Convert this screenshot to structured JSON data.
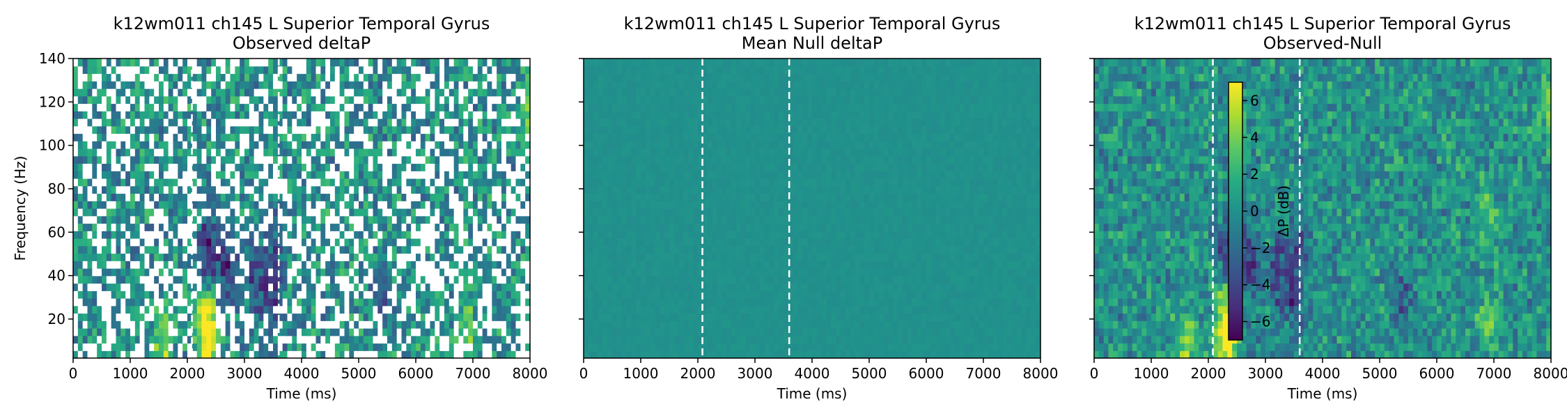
{
  "chart_data": [
    {
      "type": "heatmap",
      "title": "k12wm011 ch145 L Superior Temporal Gyrus",
      "subtitle": "Observed deltaP",
      "xlabel": "Time (ms)",
      "ylabel": "Frequency (Hz)",
      "xlim": [
        0,
        8000
      ],
      "ylim": [
        2,
        140
      ],
      "xticks": [
        0,
        1000,
        2000,
        3000,
        4000,
        5000,
        6000,
        7000,
        8000
      ],
      "yticks": [
        20,
        40,
        60,
        80,
        100,
        120,
        140
      ],
      "event_lines_ms": [
        2080,
        3600
      ],
      "colormap": "viridis",
      "masked_nonsignificant_white": true,
      "features": [
        {
          "t": 1600,
          "f": 10,
          "v": 4.0
        },
        {
          "t": 2350,
          "f": 10,
          "v": 6.5
        },
        {
          "t": 2300,
          "f": 25,
          "v": 4.5
        },
        {
          "t": 2350,
          "f": 50,
          "v": -6.0
        },
        {
          "t": 2700,
          "f": 45,
          "v": -5.0
        },
        {
          "t": 3200,
          "f": 40,
          "v": -4.0
        },
        {
          "t": 3500,
          "f": 30,
          "v": -3.5
        },
        {
          "t": 3550,
          "f": 55,
          "v": -3.0
        },
        {
          "t": 5400,
          "f": 30,
          "v": -2.5
        },
        {
          "t": 6900,
          "f": 18,
          "v": 3.0
        },
        {
          "t": 8000,
          "f": 115,
          "v": 4.0
        }
      ]
    },
    {
      "type": "heatmap",
      "title": "k12wm011 ch145 L Superior Temporal Gyrus",
      "subtitle": "Mean Null deltaP",
      "xlabel": "Time (ms)",
      "xlim": [
        0,
        8000
      ],
      "ylim": [
        2,
        140
      ],
      "xticks": [
        0,
        1000,
        2000,
        3000,
        4000,
        5000,
        6000,
        7000,
        8000
      ],
      "yticks": [
        20,
        40,
        60,
        80,
        100,
        120,
        140
      ],
      "event_lines_ms": [
        2080,
        3600
      ],
      "colormap": "viridis",
      "approximate_value": 0
    },
    {
      "type": "heatmap",
      "title": "k12wm011 ch145 L Superior Temporal Gyrus",
      "subtitle": "Observed-Null",
      "xlabel": "Time (ms)",
      "xlim": [
        0,
        8000
      ],
      "ylim": [
        2,
        140
      ],
      "xticks": [
        0,
        1000,
        2000,
        3000,
        4000,
        5000,
        6000,
        7000,
        8000
      ],
      "yticks": [
        20,
        40,
        60,
        80,
        100,
        120,
        140
      ],
      "event_lines_ms": [
        2080,
        3600
      ],
      "colormap": "viridis",
      "colorbar": {
        "label": "ΔP (dB)",
        "vmin": -7,
        "vmax": 7,
        "ticks": [
          -6,
          -4,
          -2,
          0,
          2,
          4,
          6
        ],
        "placement": "inside-left"
      },
      "features": [
        {
          "t": 1600,
          "f": 10,
          "v": 4.0
        },
        {
          "t": 2350,
          "f": 10,
          "v": 6.5
        },
        {
          "t": 2300,
          "f": 25,
          "v": 4.5
        },
        {
          "t": 2350,
          "f": 50,
          "v": -6.0
        },
        {
          "t": 2700,
          "f": 45,
          "v": -5.0
        },
        {
          "t": 3200,
          "f": 40,
          "v": -4.0
        },
        {
          "t": 3500,
          "f": 30,
          "v": -3.5
        },
        {
          "t": 3550,
          "f": 55,
          "v": -3.0
        },
        {
          "t": 5400,
          "f": 30,
          "v": -2.5
        },
        {
          "t": 6900,
          "f": 18,
          "v": 3.0
        },
        {
          "t": 6900,
          "f": 70,
          "v": 3.0
        },
        {
          "t": 8000,
          "f": 115,
          "v": 4.0
        }
      ]
    }
  ]
}
